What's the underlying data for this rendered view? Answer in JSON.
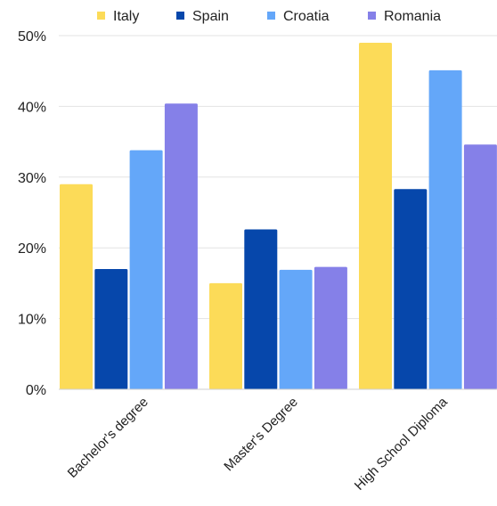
{
  "chart_data": {
    "type": "bar",
    "title": "",
    "xlabel": "",
    "ylabel": "",
    "categories": [
      "Bachelor's degree",
      "Master's Degree",
      "High School Diploma"
    ],
    "series": [
      {
        "name": "Italy",
        "color": "#fcdb58",
        "values": [
          29,
          15,
          49
        ]
      },
      {
        "name": "Spain",
        "color": "#0647ab",
        "values": [
          17,
          22.6,
          28.3
        ]
      },
      {
        "name": "Croatia",
        "color": "#64a7f9",
        "values": [
          33.8,
          16.9,
          45.1
        ]
      },
      {
        "name": "Romania",
        "color": "#8580e8",
        "values": [
          40.4,
          17.3,
          34.6
        ]
      }
    ],
    "ylim": [
      0,
      50
    ],
    "yticks": [
      {
        "value": 0,
        "label": "0%"
      },
      {
        "value": 10,
        "label": "10%"
      },
      {
        "value": 20,
        "label": "20%"
      },
      {
        "value": 30,
        "label": "30%"
      },
      {
        "value": 40,
        "label": "40%"
      },
      {
        "value": 50,
        "label": "50%"
      }
    ],
    "grid": true,
    "legend_position": "top"
  }
}
